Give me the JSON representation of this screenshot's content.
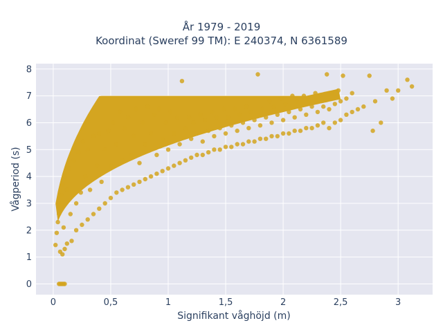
{
  "chart_data": {
    "type": "scatter",
    "title": "År 1979 - 2019",
    "subtitle": "Koordinat (Sweref 99 TM): E 240374, N 6361589",
    "xlabel": "Signifikant våghöjd (m)",
    "ylabel": "Vågperiod (s)",
    "xlim": [
      -0.15,
      3.3
    ],
    "ylim": [
      -0.4,
      8.2
    ],
    "xticks": [
      0,
      0.5,
      1,
      1.5,
      2,
      2.5,
      3
    ],
    "xtick_labels": [
      "0",
      "0,5",
      "1",
      "1,5",
      "2",
      "2,5",
      "3"
    ],
    "yticks": [
      0,
      1,
      2,
      3,
      4,
      5,
      6,
      7,
      8
    ],
    "ytick_labels": [
      "0",
      "1",
      "2",
      "3",
      "4",
      "5",
      "6",
      "7",
      "8"
    ],
    "grid": true,
    "colors": {
      "marker": "#D4A520",
      "plot_bg": "#E5E6F0",
      "grid": "#ffffff"
    },
    "series": [
      {
        "points": [
          [
            0.02,
            1.45
          ],
          [
            0.03,
            1.9
          ],
          [
            0.04,
            2.3
          ],
          [
            0.05,
            2.6
          ],
          [
            0.05,
            3.0
          ],
          [
            0.06,
            1.2
          ],
          [
            0.07,
            3.3
          ],
          [
            0.08,
            1.1
          ],
          [
            0.08,
            3.7
          ],
          [
            0.09,
            2.1
          ],
          [
            0.1,
            4.0
          ],
          [
            0.1,
            1.3
          ],
          [
            0.12,
            3.5
          ],
          [
            0.12,
            1.5
          ],
          [
            0.14,
            4.3
          ],
          [
            0.15,
            2.6
          ],
          [
            0.16,
            1.6
          ],
          [
            0.18,
            4.6
          ],
          [
            0.2,
            3.0
          ],
          [
            0.2,
            2.0
          ],
          [
            0.22,
            4.9
          ],
          [
            0.24,
            3.4
          ],
          [
            0.25,
            2.2
          ],
          [
            0.26,
            5.3
          ],
          [
            0.28,
            4.0
          ],
          [
            0.3,
            2.4
          ],
          [
            0.3,
            5.0
          ],
          [
            0.32,
            3.5
          ],
          [
            0.35,
            5.5
          ],
          [
            0.35,
            2.6
          ],
          [
            0.38,
            4.4
          ],
          [
            0.4,
            2.8
          ],
          [
            0.4,
            5.6
          ],
          [
            0.42,
            3.8
          ],
          [
            0.45,
            5.0
          ],
          [
            0.45,
            3.0
          ],
          [
            0.48,
            5.7
          ],
          [
            0.5,
            3.2
          ],
          [
            0.5,
            4.4
          ],
          [
            0.52,
            6.0
          ],
          [
            0.55,
            3.4
          ],
          [
            0.55,
            5.2
          ],
          [
            0.58,
            6.4
          ],
          [
            0.6,
            3.5
          ],
          [
            0.6,
            4.6
          ],
          [
            0.62,
            5.8
          ],
          [
            0.65,
            3.6
          ],
          [
            0.65,
            6.2
          ],
          [
            0.68,
            4.8
          ],
          [
            0.7,
            3.7
          ],
          [
            0.7,
            5.5
          ],
          [
            0.72,
            6.5
          ],
          [
            0.75,
            3.8
          ],
          [
            0.75,
            4.5
          ],
          [
            0.78,
            6.0
          ],
          [
            0.8,
            3.9
          ],
          [
            0.8,
            5.2
          ],
          [
            0.82,
            6.6
          ],
          [
            0.85,
            4.0
          ],
          [
            0.85,
            5.6
          ],
          [
            0.88,
            6.3
          ],
          [
            0.9,
            4.1
          ],
          [
            0.9,
            4.8
          ],
          [
            0.92,
            6.5
          ],
          [
            0.95,
            4.2
          ],
          [
            0.95,
            5.4
          ],
          [
            0.98,
            6.0
          ],
          [
            1.0,
            4.3
          ],
          [
            1.0,
            5.0
          ],
          [
            1.02,
            6.4
          ],
          [
            1.05,
            4.4
          ],
          [
            1.05,
            5.6
          ],
          [
            1.08,
            6.2
          ],
          [
            1.1,
            4.5
          ],
          [
            1.1,
            5.2
          ],
          [
            1.12,
            7.55
          ],
          [
            1.15,
            4.6
          ],
          [
            1.15,
            5.8
          ],
          [
            1.18,
            6.2
          ],
          [
            1.2,
            4.7
          ],
          [
            1.2,
            5.4
          ],
          [
            1.22,
            6.0
          ],
          [
            1.25,
            4.8
          ],
          [
            1.25,
            5.6
          ],
          [
            1.28,
            6.3
          ],
          [
            1.3,
            4.8
          ],
          [
            1.3,
            5.3
          ],
          [
            1.32,
            6.1
          ],
          [
            1.35,
            4.9
          ],
          [
            1.35,
            5.7
          ],
          [
            1.38,
            6.4
          ],
          [
            1.4,
            5.0
          ],
          [
            1.4,
            5.5
          ],
          [
            1.42,
            6.2
          ],
          [
            1.45,
            5.0
          ],
          [
            1.45,
            5.8
          ],
          [
            1.48,
            6.5
          ],
          [
            1.5,
            5.1
          ],
          [
            1.5,
            5.6
          ],
          [
            1.52,
            6.2
          ],
          [
            1.55,
            5.1
          ],
          [
            1.55,
            5.9
          ],
          [
            1.58,
            6.5
          ],
          [
            1.6,
            5.2
          ],
          [
            1.6,
            5.7
          ],
          [
            1.62,
            6.3
          ],
          [
            1.65,
            5.2
          ],
          [
            1.65,
            6.0
          ],
          [
            1.68,
            6.6
          ],
          [
            1.7,
            5.3
          ],
          [
            1.7,
            5.8
          ],
          [
            1.72,
            6.4
          ],
          [
            1.75,
            5.3
          ],
          [
            1.75,
            6.1
          ],
          [
            1.78,
            7.8
          ],
          [
            1.8,
            5.4
          ],
          [
            1.8,
            5.9
          ],
          [
            1.82,
            6.5
          ],
          [
            1.85,
            5.4
          ],
          [
            1.85,
            6.2
          ],
          [
            1.88,
            6.8
          ],
          [
            1.9,
            5.5
          ],
          [
            1.9,
            6.0
          ],
          [
            1.92,
            6.6
          ],
          [
            1.95,
            5.5
          ],
          [
            1.95,
            6.3
          ],
          [
            1.98,
            6.9
          ],
          [
            2.0,
            5.6
          ],
          [
            2.0,
            6.1
          ],
          [
            2.02,
            6.7
          ],
          [
            2.05,
            5.6
          ],
          [
            2.05,
            6.4
          ],
          [
            2.08,
            7.0
          ],
          [
            2.1,
            5.7
          ],
          [
            2.1,
            6.2
          ],
          [
            2.12,
            6.8
          ],
          [
            2.15,
            5.7
          ],
          [
            2.15,
            6.5
          ],
          [
            2.18,
            7.0
          ],
          [
            2.2,
            5.8
          ],
          [
            2.2,
            6.3
          ],
          [
            2.22,
            6.9
          ],
          [
            2.25,
            5.8
          ],
          [
            2.25,
            6.6
          ],
          [
            2.28,
            7.1
          ],
          [
            2.3,
            5.9
          ],
          [
            2.3,
            6.4
          ],
          [
            2.32,
            7.0
          ],
          [
            2.35,
            6.0
          ],
          [
            2.35,
            6.6
          ],
          [
            2.38,
            7.8
          ],
          [
            2.4,
            5.8
          ],
          [
            2.4,
            6.5
          ],
          [
            2.42,
            7.1
          ],
          [
            2.45,
            6.0
          ],
          [
            2.45,
            6.7
          ],
          [
            2.48,
            7.2
          ],
          [
            2.5,
            6.1
          ],
          [
            2.5,
            6.8
          ],
          [
            2.52,
            7.75
          ],
          [
            2.55,
            6.3
          ],
          [
            2.55,
            6.9
          ],
          [
            2.6,
            6.4
          ],
          [
            2.6,
            7.1
          ],
          [
            2.65,
            6.5
          ],
          [
            2.7,
            6.6
          ],
          [
            2.75,
            7.75
          ],
          [
            2.78,
            5.7
          ],
          [
            2.8,
            6.8
          ],
          [
            2.85,
            6.0
          ],
          [
            2.9,
            7.2
          ],
          [
            2.95,
            6.9
          ],
          [
            3.0,
            7.2
          ],
          [
            3.08,
            7.6
          ],
          [
            3.12,
            7.35
          ],
          [
            0.05,
            0.0
          ],
          [
            0.06,
            0.0
          ],
          [
            0.07,
            0.0
          ],
          [
            0.08,
            0.0
          ],
          [
            0.09,
            0.0
          ],
          [
            0.1,
            0.0
          ]
        ]
      }
    ]
  }
}
